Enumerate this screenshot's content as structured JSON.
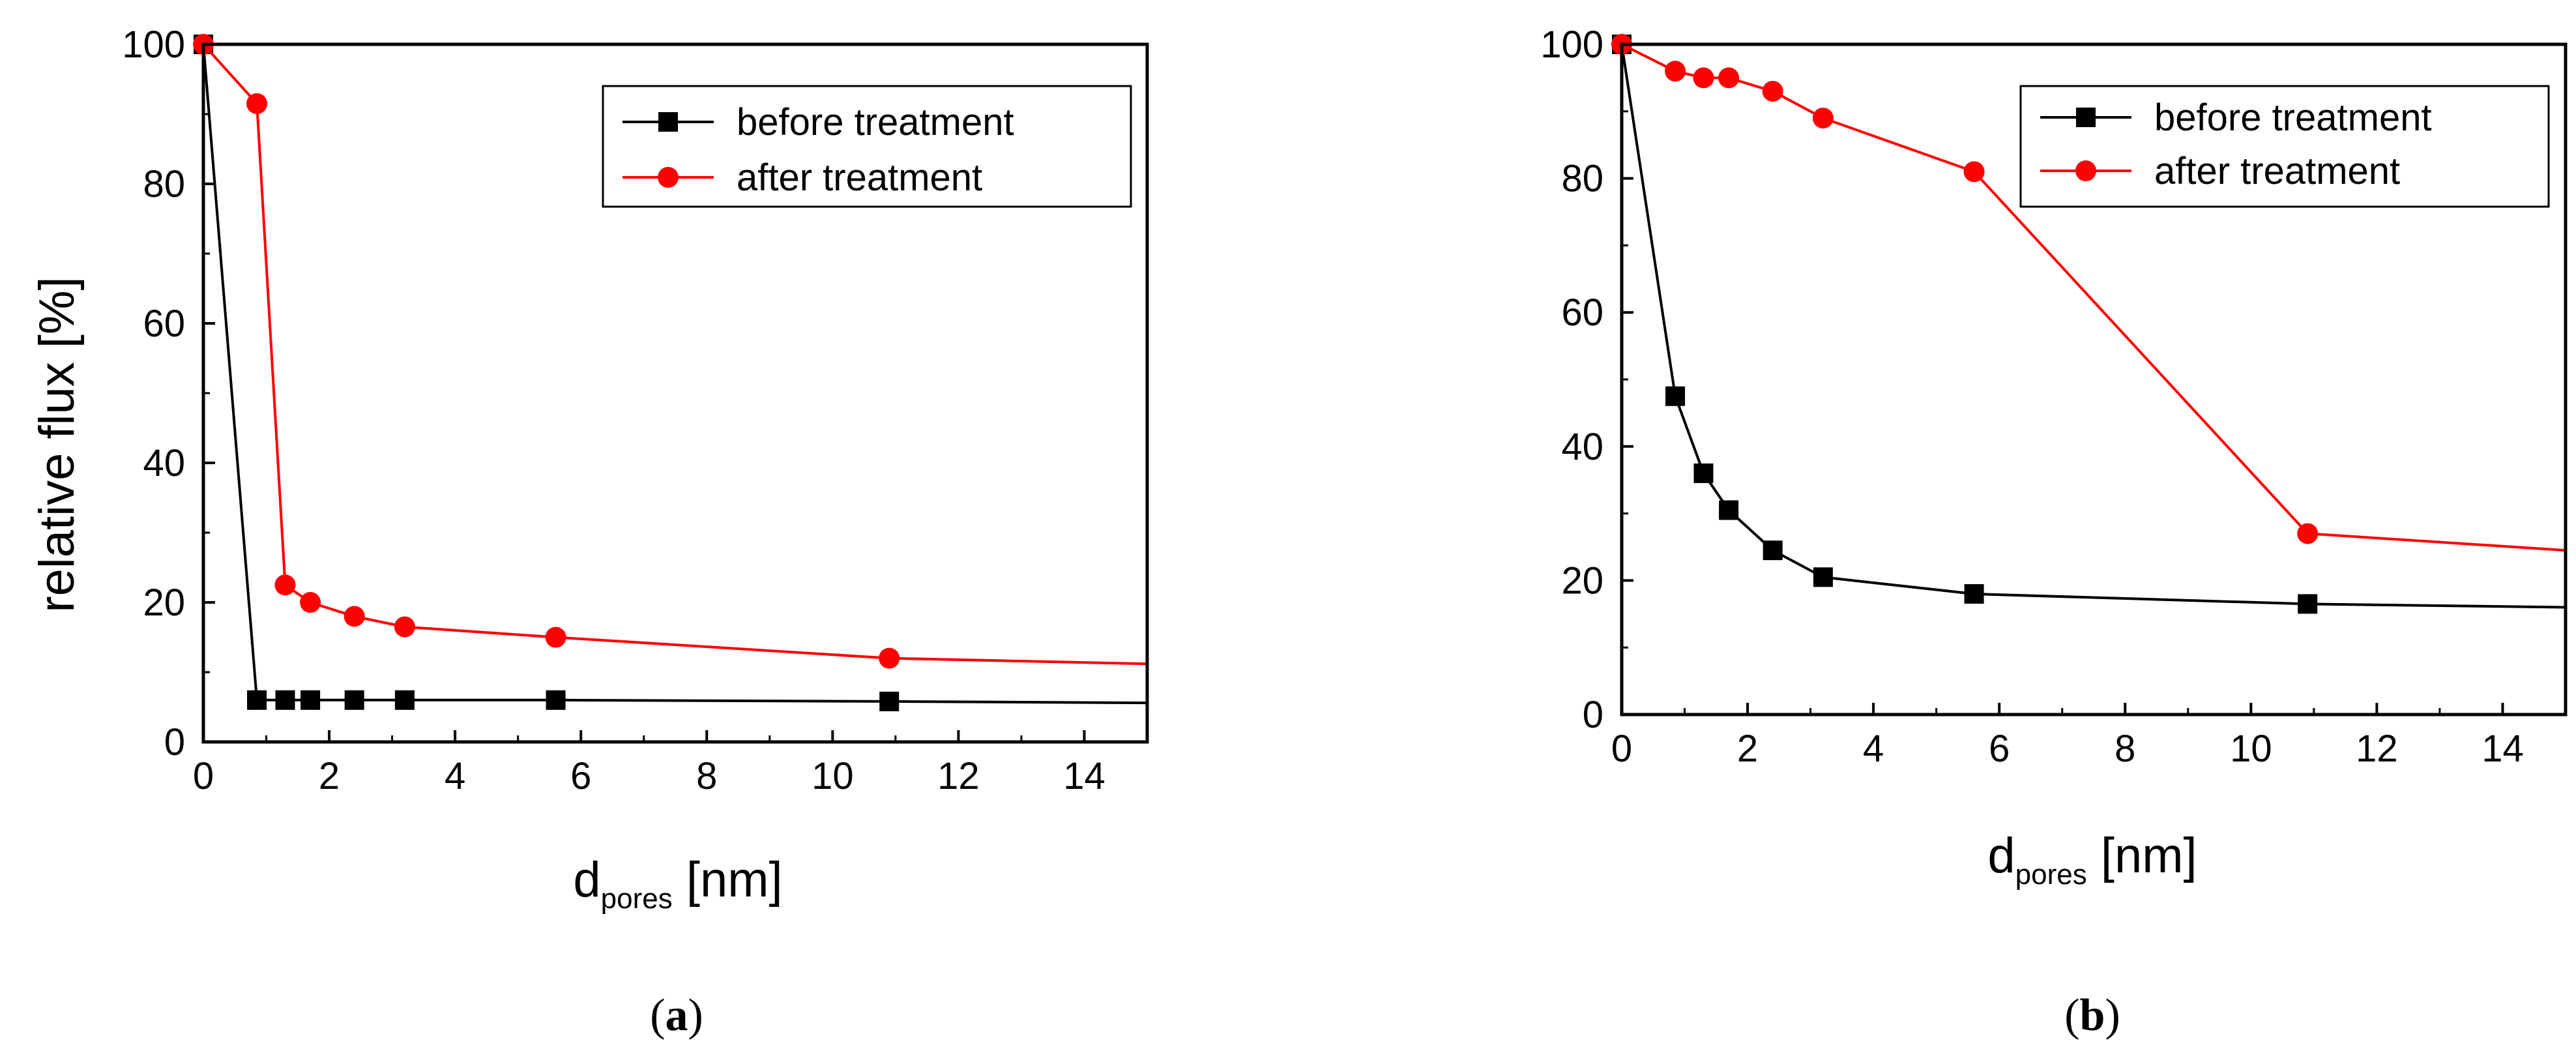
{
  "chart_data": [
    {
      "type": "line",
      "panel_label_open": "(",
      "panel_label_letter": "a",
      "panel_label_close": ")",
      "xlabel_main": "d",
      "xlabel_sub": "pores",
      "xlabel_unit": " [nm]",
      "ylabel": "relative flux [%]",
      "xlim": [
        0,
        15
      ],
      "ylim": [
        0,
        100
      ],
      "xticks": [
        0,
        2,
        4,
        6,
        8,
        10,
        12,
        14
      ],
      "yticks": [
        0,
        20,
        40,
        60,
        80,
        100
      ],
      "grid": false,
      "legend_position": "top-right",
      "series": [
        {
          "name": "before treatment",
          "color": "#000000",
          "marker": "square",
          "x": [
            0,
            0.85,
            1.3,
            1.7,
            2.4,
            3.2,
            5.6,
            10.9,
            15
          ],
          "y": [
            100,
            6,
            6,
            6,
            6,
            6,
            6,
            5.8,
            5.6
          ],
          "markers_shown": [
            true,
            true,
            true,
            true,
            true,
            true,
            true,
            true,
            false
          ]
        },
        {
          "name": "after treatment",
          "color": "#ff0000",
          "marker": "circle",
          "x": [
            0,
            0.85,
            1.3,
            1.7,
            2.4,
            3.2,
            5.6,
            10.9,
            15
          ],
          "y": [
            100,
            91.5,
            22.5,
            20,
            18,
            16.5,
            15,
            12,
            11.2
          ],
          "markers_shown": [
            true,
            true,
            true,
            true,
            true,
            true,
            true,
            true,
            false
          ]
        }
      ]
    },
    {
      "type": "line",
      "panel_label_open": "(",
      "panel_label_letter": "b",
      "panel_label_close": ")",
      "xlabel_main": "d",
      "xlabel_sub": "pores",
      "xlabel_unit": " [nm]",
      "ylabel": "",
      "xlim": [
        0,
        15
      ],
      "ylim": [
        0,
        100
      ],
      "xticks": [
        0,
        2,
        4,
        6,
        8,
        10,
        12,
        14
      ],
      "yticks": [
        0,
        20,
        40,
        60,
        80,
        100
      ],
      "grid": false,
      "legend_position": "top-right",
      "series": [
        {
          "name": "before treatment",
          "color": "#000000",
          "marker": "square",
          "x": [
            0,
            0.85,
            1.3,
            1.7,
            2.4,
            3.2,
            5.6,
            10.9,
            15
          ],
          "y": [
            100,
            47.5,
            36,
            30.5,
            24.5,
            20.5,
            18,
            16.5,
            16
          ],
          "markers_shown": [
            true,
            true,
            true,
            true,
            true,
            true,
            true,
            true,
            false
          ]
        },
        {
          "name": "after treatment",
          "color": "#ff0000",
          "marker": "circle",
          "x": [
            0,
            0.85,
            1.3,
            1.7,
            2.4,
            3.2,
            5.6,
            10.9,
            15
          ],
          "y": [
            100,
            96,
            95,
            95,
            93,
            89,
            81,
            27,
            24.5
          ],
          "markers_shown": [
            true,
            true,
            true,
            true,
            true,
            true,
            true,
            true,
            false
          ]
        }
      ]
    }
  ]
}
